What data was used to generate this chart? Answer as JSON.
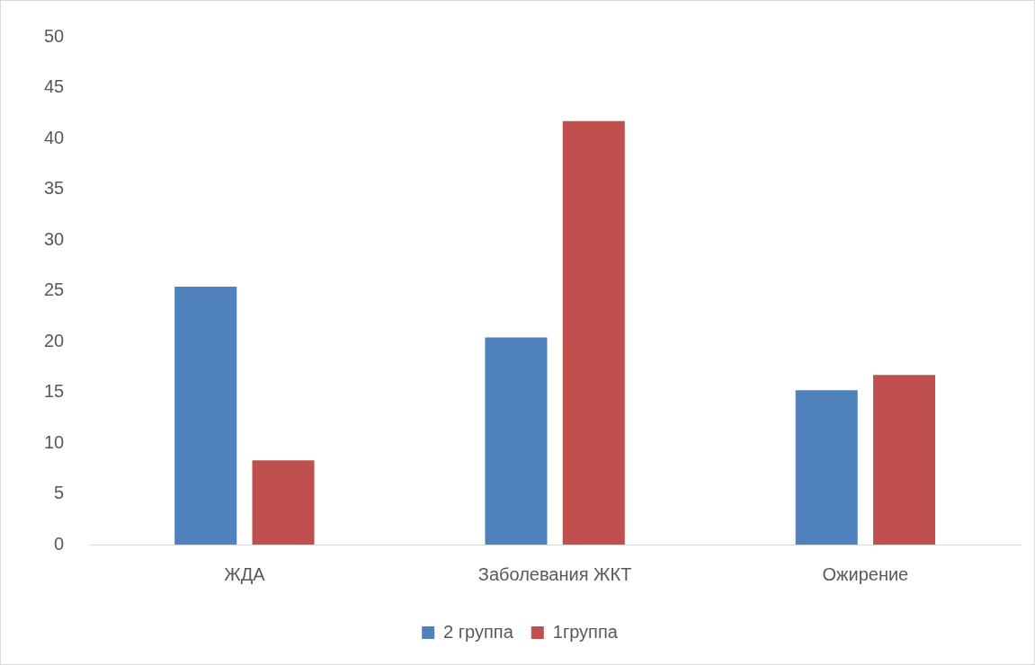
{
  "chart_data": {
    "type": "bar",
    "categories": [
      "ЖДА",
      "Заболевания ЖКТ",
      "Ожирение"
    ],
    "series": [
      {
        "name": "2 группа",
        "color": "#4f81bd",
        "values": [
          25.4,
          20.4,
          15.2
        ]
      },
      {
        "name": "1группа",
        "color": "#c0504d",
        "values": [
          8.3,
          41.7,
          16.7
        ]
      }
    ],
    "ylim": [
      0,
      50
    ],
    "yticks": [
      0,
      5,
      10,
      15,
      20,
      25,
      30,
      35,
      40,
      45,
      50
    ],
    "grid": false,
    "legend": "bottom"
  }
}
